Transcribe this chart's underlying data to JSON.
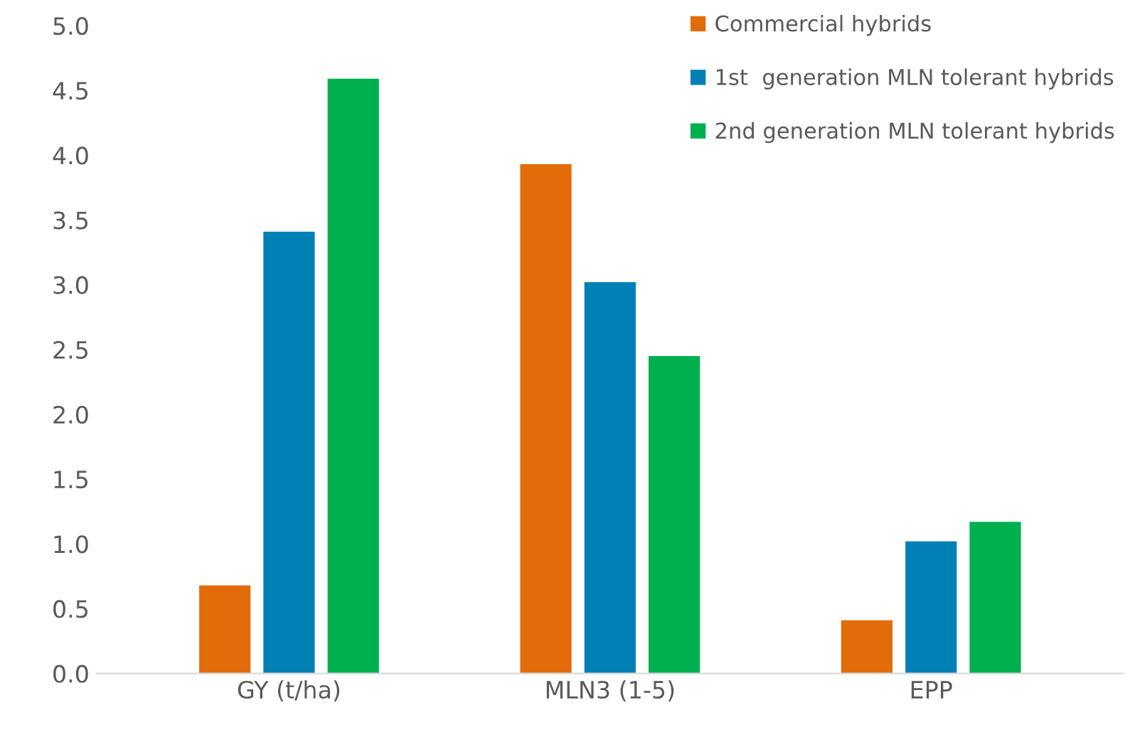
{
  "chart_data": {
    "type": "bar",
    "categories": [
      "GY (t/ha)",
      "MLN3 (1-5)",
      "EPP"
    ],
    "series": [
      {
        "name": "Commercial hybrids",
        "color": "#e36c0a",
        "values": [
          0.68,
          3.93,
          0.41
        ]
      },
      {
        "name": "1st  generation MLN tolerant hybrids",
        "color": "#0080b4",
        "values": [
          3.41,
          3.02,
          1.02
        ]
      },
      {
        "name": "2nd generation MLN tolerant hybrids",
        "color": "#00b04f",
        "values": [
          4.59,
          2.45,
          1.17
        ]
      }
    ],
    "ylim": [
      0,
      5.0
    ],
    "yticks": [
      {
        "value": 0,
        "label": "0.0"
      },
      {
        "value": 0.5,
        "label": "0.5"
      },
      {
        "value": 1.0,
        "label": "1.0"
      },
      {
        "value": 1.5,
        "label": "1.5"
      },
      {
        "value": 2.0,
        "label": "2.0"
      },
      {
        "value": 2.5,
        "label": "2.5"
      },
      {
        "value": 3.0,
        "label": "3.0"
      },
      {
        "value": 3.5,
        "label": "3.5"
      },
      {
        "value": 4.0,
        "label": "4.0"
      },
      {
        "value": 4.5,
        "label": "4.5"
      },
      {
        "value": 5.0,
        "label": "5.0"
      }
    ],
    "grid": false,
    "legend": "top right"
  }
}
